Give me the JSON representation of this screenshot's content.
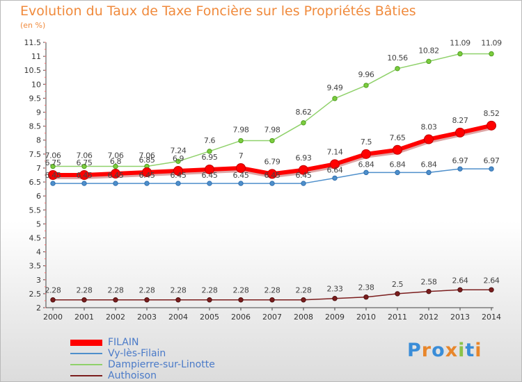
{
  "header": {
    "title": "Evolution du Taux de Taxe Foncière sur les Propriétés Bâties",
    "unit": "(en %)"
  },
  "logo": {
    "text": "Proxiti",
    "letter_colors": [
      "#3a8dd8",
      "#e8862b",
      "#3a8dd8",
      "#e8862b",
      "#8bc34a",
      "#3a8dd8",
      "#e8862b"
    ]
  },
  "chart_data": {
    "type": "line",
    "title": "Evolution du Taux de Taxe Foncière sur les Propriétés Bâties",
    "ylabel": "(en %)",
    "xlabel": "",
    "x": [
      "2000",
      "2001",
      "2002",
      "2003",
      "2004",
      "2005",
      "2006",
      "2007",
      "2008",
      "2009",
      "2010",
      "2011",
      "2012",
      "2013",
      "2014"
    ],
    "ylim": [
      2,
      11.5
    ],
    "yticks": [
      2,
      2.5,
      3,
      3.5,
      4,
      4.5,
      5,
      5.5,
      6,
      6.5,
      7,
      7.5,
      8,
      8.5,
      9,
      9.5,
      10,
      10.5,
      11,
      11.5
    ],
    "ytick_labels": [
      "2",
      "2.5",
      "3",
      "3.5",
      "4",
      "4.5",
      "5",
      "5.5",
      "6",
      "6.5",
      "7",
      "7.5",
      "8",
      "8.5",
      "9",
      "9.5",
      "10",
      "10.5",
      "11",
      "11.5"
    ],
    "grid": false,
    "legend_position": "bottom-left",
    "series": [
      {
        "name": "FILAIN",
        "color": "#ff0000",
        "values": [
          6.75,
          6.75,
          6.8,
          6.85,
          6.9,
          6.95,
          7,
          6.79,
          6.93,
          7.14,
          7.5,
          7.65,
          8.03,
          8.27,
          8.52
        ],
        "labels": [
          "6.75",
          "6.75",
          "6.8",
          "6.85",
          "6.9",
          "6.95",
          "7",
          "6.79",
          "6.93",
          "7.14",
          "7.5",
          "7.65",
          "8.03",
          "8.27",
          "8.52"
        ]
      },
      {
        "name": "Vy-lès-Filain",
        "color": "#4e8fcb",
        "values": [
          6.45,
          6.45,
          6.45,
          6.45,
          6.45,
          6.45,
          6.45,
          6.45,
          6.45,
          6.64,
          6.84,
          6.84,
          6.84,
          6.97,
          6.97
        ],
        "labels": [
          "6.45",
          "6.45",
          "6.45",
          "6.45",
          "6.45",
          "6.45",
          "6.45",
          "6.45",
          "6.45",
          "6.64",
          "6.84",
          "6.84",
          "6.84",
          "6.97",
          "6.97"
        ]
      },
      {
        "name": "Dampierre-sur-Linotte",
        "color": "#8fd16a",
        "values": [
          7.06,
          7.06,
          7.06,
          7.06,
          7.24,
          7.6,
          7.98,
          7.98,
          8.62,
          9.49,
          9.96,
          10.56,
          10.82,
          11.09,
          11.09
        ],
        "labels": [
          "7.06",
          "7.06",
          "7.06",
          "7.06",
          "7.24",
          "7.6",
          "7.98",
          "7.98",
          "8.62",
          "9.49",
          "9.96",
          "10.56",
          "10.82",
          "11.09",
          "11.09"
        ]
      },
      {
        "name": "Authoison",
        "color": "#7b1d1d",
        "values": [
          2.28,
          2.28,
          2.28,
          2.28,
          2.28,
          2.28,
          2.28,
          2.28,
          2.28,
          2.33,
          2.38,
          2.5,
          2.58,
          2.64,
          2.64
        ],
        "labels": [
          "2.28",
          "2.28",
          "2.28",
          "2.28",
          "2.28",
          "2.28",
          "2.28",
          "2.28",
          "2.28",
          "2.33",
          "2.38",
          "2.5",
          "2.58",
          "2.64",
          "2.64"
        ]
      }
    ]
  }
}
